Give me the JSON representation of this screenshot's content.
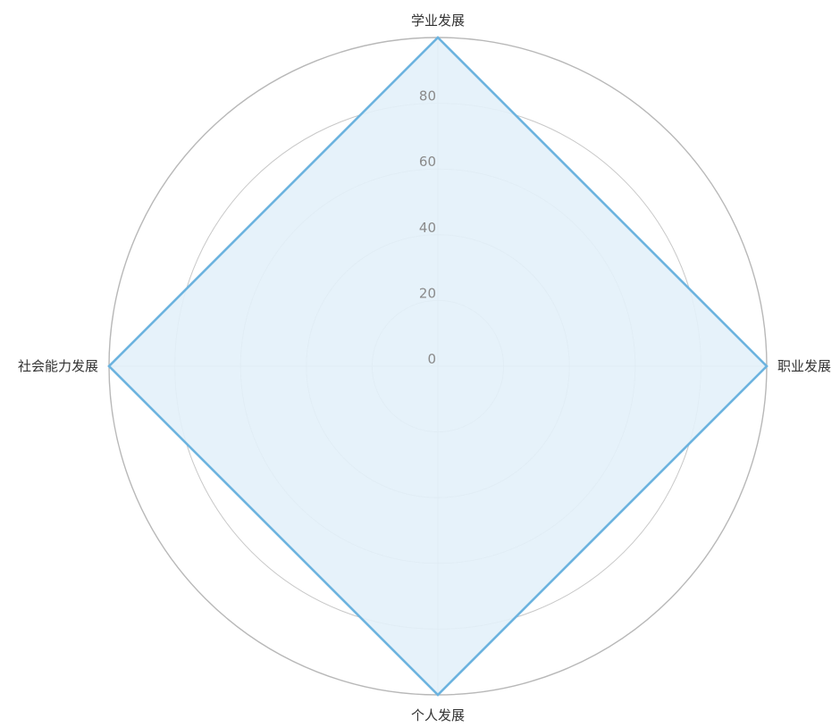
{
  "chart_data": {
    "type": "radar",
    "title": "",
    "axes": [
      "学业发展",
      "职业发展",
      "个人发展",
      "社会能力发展"
    ],
    "scale": {
      "min": 0,
      "max": 100,
      "ticks": [
        0,
        20,
        40,
        60,
        80
      ]
    },
    "series": [
      {
        "values": [
          100,
          100,
          100,
          100
        ]
      }
    ],
    "grid": true,
    "legend": "none",
    "colors": {
      "line": "#6cb3df",
      "fill": "#e3f1f9",
      "grid": "#c8c8c8",
      "outer_grid": "#b8b8b8",
      "axis": "#c0c0c0",
      "axis_label": "#333333",
      "tick_label": "#8a8a8a"
    }
  }
}
